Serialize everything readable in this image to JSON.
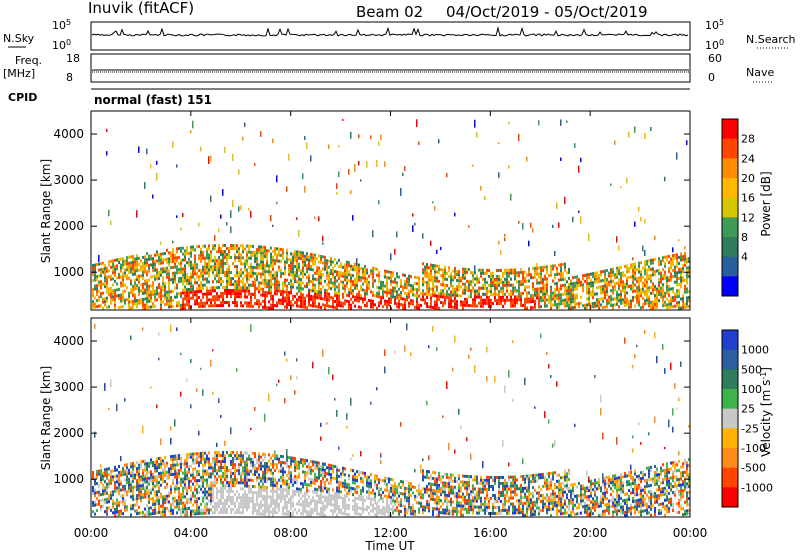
{
  "header": {
    "title": "Inuvik (fitACF)",
    "beam": "Beam 02",
    "date_range": "04/Oct/2019 - 05/Oct/2019"
  },
  "status_panels": {
    "nsky": {
      "label": "N.Sky",
      "ticks": [
        "10^5",
        "10^0"
      ]
    },
    "nsearch": {
      "label": "N.Search",
      "ticks": [
        "10^5",
        "10^0"
      ]
    },
    "freq": {
      "label_top": "Freq.",
      "label_bottom": "[MHz]",
      "ticks": [
        "18",
        "8"
      ]
    },
    "nave": {
      "label": "Nave",
      "ticks": [
        "60",
        "0"
      ]
    },
    "cpid": {
      "label": "CPID",
      "value": "normal (fast) 151"
    }
  },
  "chart_data": [
    {
      "type": "heatmap",
      "name": "power",
      "ylabel": "Slant Range [km]",
      "ylim": [
        180,
        4500
      ],
      "yticks": [
        "4000",
        "3000",
        "2000",
        "1000"
      ],
      "colorbar": {
        "label": "Power [dB]",
        "ticks": [
          "28",
          "24",
          "20",
          "16",
          "12",
          "8",
          "4"
        ],
        "colors": [
          "#ff0000",
          "#ff4500",
          "#ff8c00",
          "#ffb700",
          "#d8c600",
          "#3d9b55",
          "#2e7d5b",
          "#2a5f9e",
          "#0000ff"
        ]
      }
    },
    {
      "type": "heatmap",
      "name": "velocity",
      "ylabel": "Slant Range [km]",
      "ylim": [
        180,
        4500
      ],
      "yticks": [
        "4000",
        "3000",
        "2000",
        "1000"
      ],
      "colorbar": {
        "label": "Velocity [m s^-1]",
        "ticks": [
          "1000",
          "500",
          "100",
          "25",
          "-25",
          "-100",
          "-500",
          "-1000"
        ],
        "colors": [
          "#1f3fcc",
          "#2b5fa0",
          "#2e7d5b",
          "#3db34a",
          "#c8c8c8",
          "#ffb300",
          "#ff8c1a",
          "#ff4500",
          "#ff0000"
        ]
      }
    }
  ],
  "xaxis": {
    "label": "Time UT",
    "ticks": [
      "00:00",
      "04:00",
      "08:00",
      "12:00",
      "16:00",
      "20:00",
      "00:00"
    ]
  }
}
